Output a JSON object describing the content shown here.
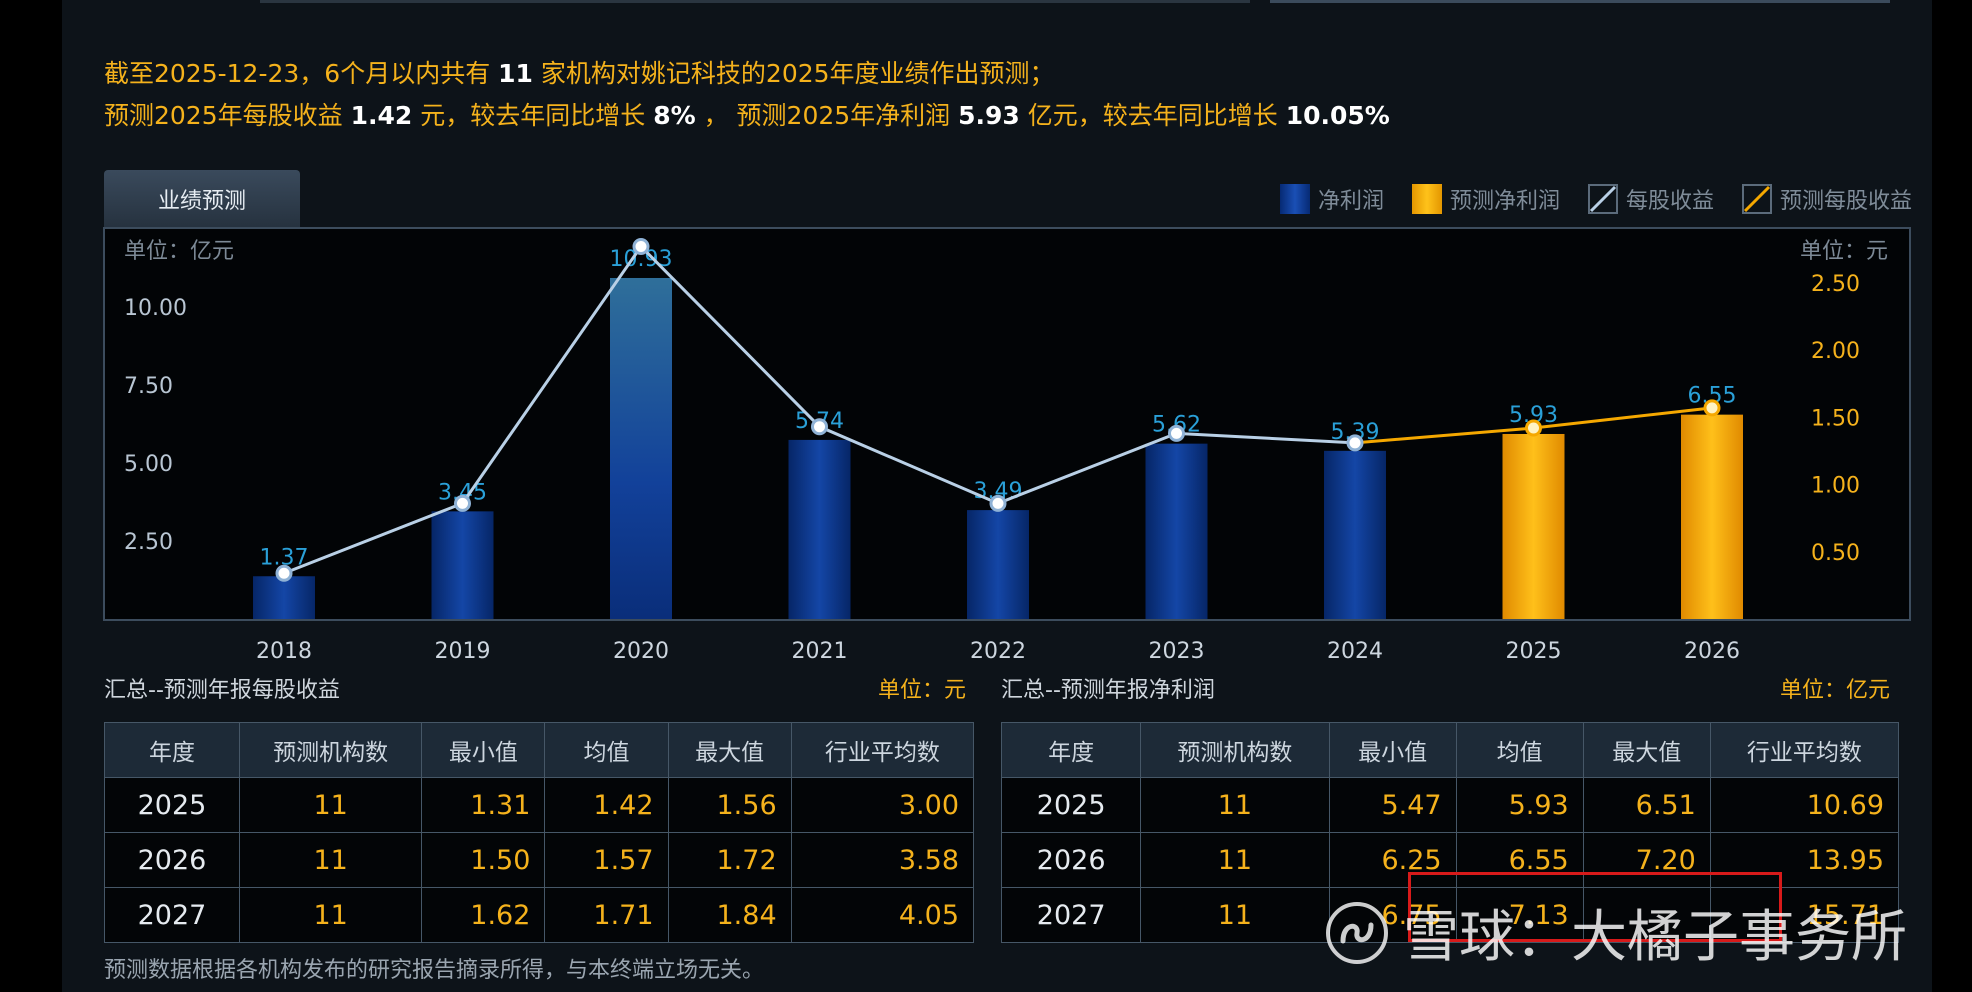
{
  "header": {
    "line1_pre": "截至2025-12-23，6个月以内共有",
    "line1_count": "11",
    "line1_post": "家机构对姚记科技的2025年度业绩作出预测；",
    "line2_a": "预测2025年每股收益",
    "line2_eps": "1.42",
    "line2_b": "元，较去年同比增长",
    "line2_eps_growth": "8%",
    "line2_c": "，  预测2025年净利润",
    "line2_np": "5.93",
    "line2_d": "亿元，较去年同比增长",
    "line2_np_growth": "10.05%"
  },
  "tab": {
    "label": "业绩预测"
  },
  "legend": {
    "items": [
      {
        "label": "净利润",
        "color": "#0d3b94",
        "type": "bar"
      },
      {
        "label": "预测净利润",
        "color": "#f5a800",
        "type": "bar"
      },
      {
        "label": "每股收益",
        "color": "#b9d0e6",
        "type": "line"
      },
      {
        "label": "预测每股收益",
        "color": "#f5a800",
        "type": "line"
      }
    ]
  },
  "chart_data": {
    "type": "bar",
    "left_unit": "单位：亿元",
    "right_unit": "单位：元",
    "categories": [
      "2018",
      "2019",
      "2020",
      "2021",
      "2022",
      "2023",
      "2024",
      "2025",
      "2026"
    ],
    "left_ticks": [
      "2.50",
      "5.00",
      "7.50",
      "10.00"
    ],
    "right_ticks": [
      "0.50",
      "1.00",
      "1.50",
      "2.00",
      "2.50"
    ],
    "left_axis_range": [
      0,
      12.5
    ],
    "right_axis_range": [
      0,
      2.9
    ],
    "series": [
      {
        "name": "净利润",
        "values": [
          1.37,
          3.45,
          10.93,
          5.74,
          3.49,
          5.62,
          5.39,
          null,
          null
        ],
        "labels": [
          "1.37",
          "3.45",
          "10.93",
          "5.74",
          "3.49",
          "5.62",
          "5.39",
          "",
          ""
        ]
      },
      {
        "name": "预测净利润",
        "values": [
          null,
          null,
          null,
          null,
          null,
          null,
          null,
          5.93,
          6.55
        ],
        "labels": [
          "",
          "",
          "",
          "",
          "",
          "",
          "",
          "5.93",
          "6.55"
        ]
      },
      {
        "name": "每股收益",
        "values": [
          0.34,
          0.86,
          2.77,
          1.43,
          0.86,
          1.38,
          1.31,
          null,
          null
        ]
      },
      {
        "name": "预测每股收益",
        "values": [
          null,
          null,
          null,
          null,
          null,
          null,
          1.31,
          1.42,
          1.57
        ]
      }
    ],
    "grid": false,
    "legend_position": "top-right",
    "colors": {
      "bar": "#0d3b94",
      "forecast_bar": "#f5a800",
      "eps_line": "#b9d0e6",
      "forecast_line": "#f5a800",
      "label": "#2aa0d8",
      "right_tick": "#f5b21c"
    }
  },
  "eps_table": {
    "title": "汇总--预测年报每股收益",
    "unit": "单位：元",
    "headers": [
      "年度",
      "预测机构数",
      "最小值",
      "均值",
      "最大值",
      "行业平均数"
    ],
    "rows": [
      [
        "2025",
        "11",
        "1.31",
        "1.42",
        "1.56",
        "3.00"
      ],
      [
        "2026",
        "11",
        "1.50",
        "1.57",
        "1.72",
        "3.58"
      ],
      [
        "2027",
        "11",
        "1.62",
        "1.71",
        "1.84",
        "4.05"
      ]
    ]
  },
  "np_table": {
    "title": "汇总--预测年报净利润",
    "unit": "单位：亿元",
    "headers": [
      "年度",
      "预测机构数",
      "最小值",
      "均值",
      "最大值",
      "行业平均数"
    ],
    "rows": [
      [
        "2025",
        "11",
        "5.47",
        "5.93",
        "6.51",
        "10.69"
      ],
      [
        "2026",
        "11",
        "6.25",
        "6.55",
        "7.20",
        "13.95"
      ],
      [
        "2027",
        "11",
        "6.75",
        "7.13",
        "",
        "15.71"
      ]
    ]
  },
  "footer": {
    "note": "预测数据根据各机构发布的研究报告摘录所得，与本终端立场无关。"
  },
  "watermark": {
    "text": "雪球：大橘子事务所"
  }
}
